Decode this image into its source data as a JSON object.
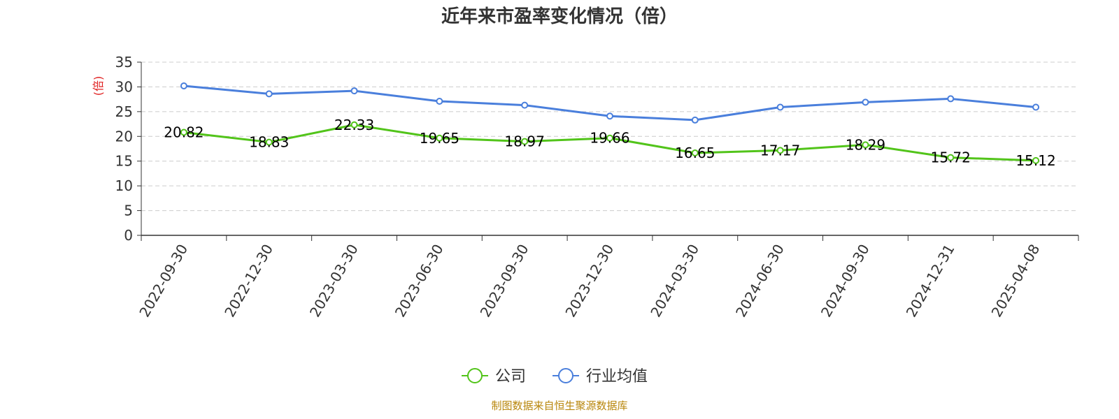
{
  "chart_data": {
    "type": "line",
    "title": "近年来市盈率变化情况（倍）",
    "ylabel": "(倍)",
    "xlabel": "",
    "categories": [
      "2022-09-30",
      "2022-12-30",
      "2023-03-30",
      "2023-06-30",
      "2023-09-30",
      "2023-12-30",
      "2024-03-30",
      "2024-06-30",
      "2024-09-30",
      "2024-12-31",
      "2025-04-08"
    ],
    "ylim": [
      0,
      35
    ],
    "yticks": [
      0,
      5,
      10,
      15,
      20,
      25,
      30,
      35
    ],
    "grid": true,
    "legend_position": "bottom",
    "series": [
      {
        "name": "公司",
        "color": "#52c41a",
        "values": [
          20.82,
          18.83,
          22.33,
          19.65,
          18.97,
          19.66,
          16.65,
          17.17,
          18.29,
          15.72,
          15.12
        ],
        "labels": [
          "20.82",
          "18.83",
          "22.33",
          "19.65",
          "18.97",
          "19.66",
          "16.65",
          "17.17",
          "18.29",
          "15.72",
          "15.12"
        ]
      },
      {
        "name": "行业均值",
        "color": "#4a7fdc",
        "values": [
          30.2,
          28.6,
          29.2,
          27.1,
          26.3,
          24.1,
          23.3,
          25.9,
          26.9,
          27.6,
          25.9
        ]
      }
    ]
  },
  "source_text": "制图数据来自恒生聚源数据库",
  "colors": {
    "ylabel": "#e02020",
    "source": "#b8860b",
    "grid": "#cccccc",
    "axis": "#333333"
  }
}
